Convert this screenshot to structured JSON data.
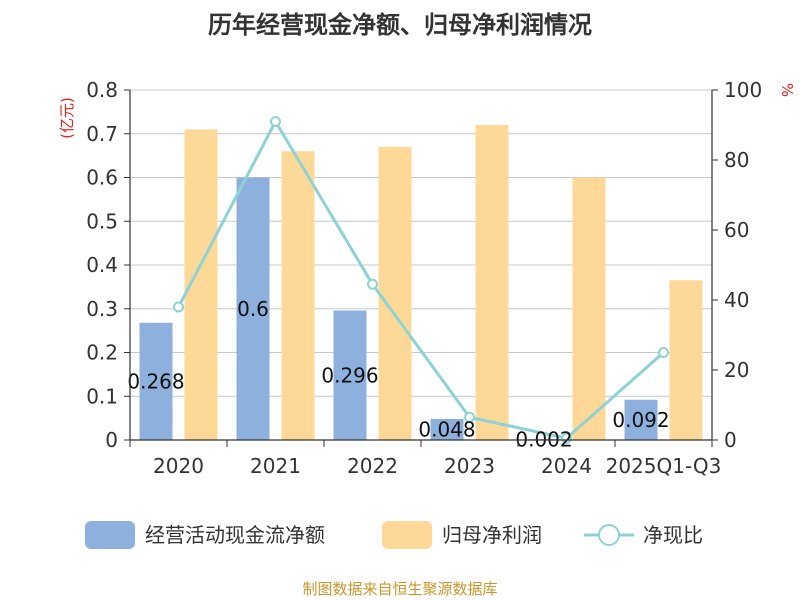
{
  "title": "历年经营现金净额、归母净利润情况",
  "source": "制图数据来自恒生聚源数据库",
  "colors": {
    "cash": "#8eb0dc",
    "profit": "#fed897",
    "ratio": "#8dd3d6"
  },
  "chart_data": {
    "type": "bar",
    "title": "历年经营现金净额、归母净利润情况",
    "categories": [
      "2020",
      "2021",
      "2022",
      "2023",
      "2024",
      "2025Q1-Q3"
    ],
    "y_left": {
      "unit": "(亿元)",
      "ylim": [
        0,
        0.8
      ],
      "ticks": [
        "0",
        "0.1",
        "0.2",
        "0.3",
        "0.4",
        "0.5",
        "0.6",
        "0.7",
        "0.8"
      ]
    },
    "y_right": {
      "unit": "%",
      "ylim": [
        0,
        100
      ],
      "ticks": [
        "0",
        "20",
        "40",
        "60",
        "80",
        "100"
      ]
    },
    "grid": true,
    "legend_position": "bottom",
    "series": [
      {
        "name": "经营活动现金流净额",
        "type": "bar",
        "axis": "left",
        "values": [
          0.268,
          0.6,
          0.296,
          0.048,
          0.002,
          0.092
        ],
        "labels": [
          "0.268",
          "0.6",
          "0.296",
          "0.048",
          "0.002",
          "0.092"
        ]
      },
      {
        "name": "归母净利润",
        "type": "bar",
        "axis": "left",
        "values": [
          0.71,
          0.66,
          0.67,
          0.72,
          0.6,
          0.365
        ]
      },
      {
        "name": "净现比",
        "type": "line",
        "axis": "right",
        "values": [
          38,
          91,
          44.5,
          6.5,
          0.5,
          25
        ]
      }
    ]
  }
}
